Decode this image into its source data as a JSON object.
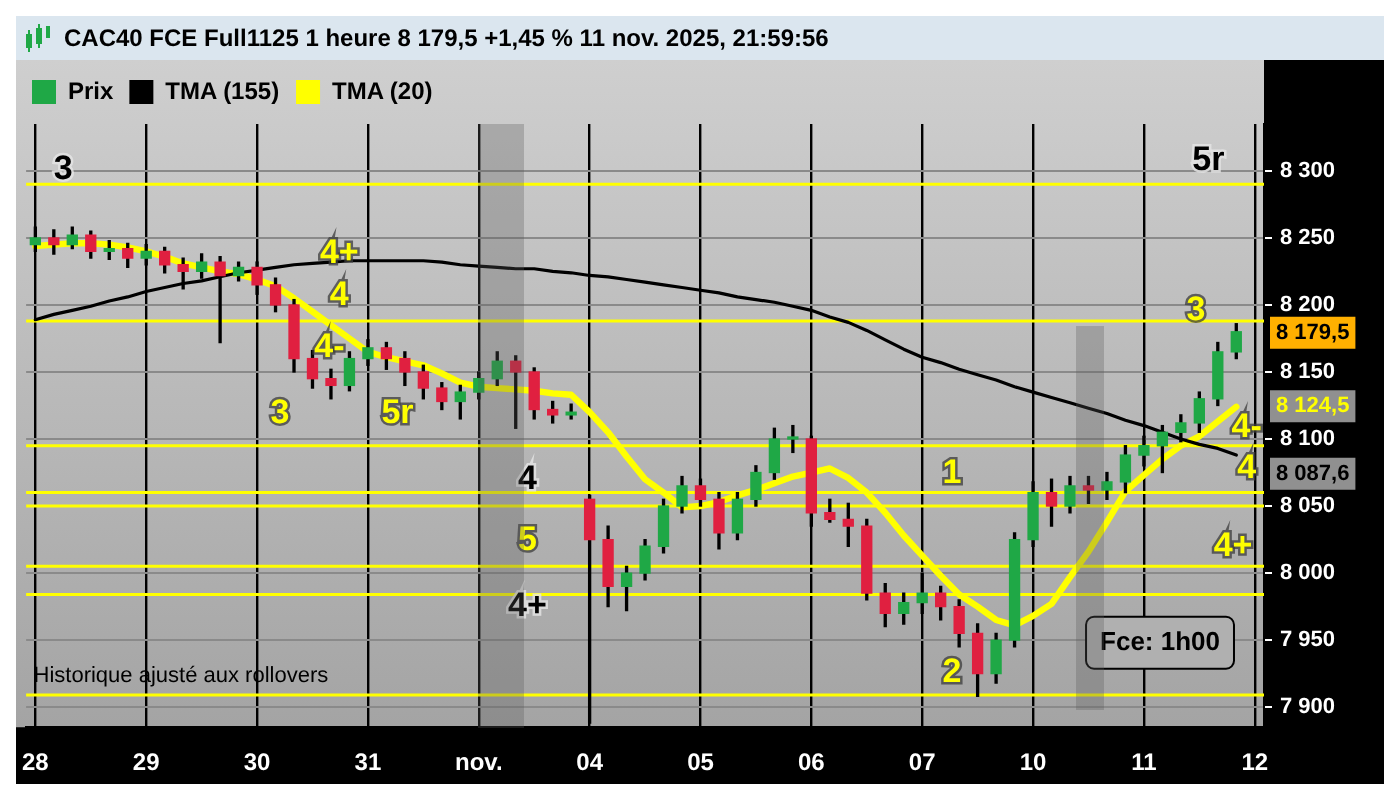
{
  "chart_data": {
    "type": "candlestick",
    "title": "CAC40 FCE Full1125 1 heure 8 179,5 +1,45 % 11 nov. 2025, 21:59:56",
    "categories": [
      "28",
      null,
      null,
      null,
      null,
      null,
      "29",
      null,
      null,
      null,
      null,
      null,
      "30",
      null,
      null,
      null,
      null,
      null,
      "31",
      null,
      null,
      null,
      null,
      null,
      "nov.",
      null,
      null,
      null,
      null,
      null,
      "04",
      null,
      null,
      null,
      null,
      null,
      "05",
      null,
      null,
      null,
      null,
      null,
      "06",
      null,
      null,
      null,
      null,
      null,
      "07",
      null,
      null,
      null,
      null,
      null,
      "10",
      null,
      null,
      null,
      null,
      null,
      "11",
      null,
      null,
      null,
      null,
      null,
      "12"
    ],
    "series": [
      {
        "name": "Prix",
        "color": "#000000",
        "ohlc": [
          [
            8245,
            8258,
            8240,
            8250
          ],
          [
            8250,
            8256,
            8238,
            8245
          ],
          [
            8245,
            8258,
            8242,
            8252
          ],
          [
            8252,
            8255,
            8235,
            8240
          ],
          [
            8240,
            8248,
            8234,
            8242
          ],
          [
            8242,
            8246,
            8228,
            8235
          ],
          [
            8235,
            8245,
            8230,
            8240
          ],
          [
            8240,
            8243,
            8224,
            8230
          ],
          [
            8230,
            8235,
            8212,
            8225
          ],
          [
            8225,
            8238,
            8220,
            8232
          ],
          [
            8232,
            8236,
            8172,
            8222
          ],
          [
            8222,
            8232,
            8218,
            8228
          ],
          [
            8228,
            8232,
            8208,
            8215
          ],
          [
            8215,
            8220,
            8195,
            8200
          ],
          [
            8200,
            8204,
            8150,
            8160
          ],
          [
            8160,
            8166,
            8138,
            8145
          ],
          [
            8145,
            8152,
            8130,
            8140
          ],
          [
            8140,
            8165,
            8136,
            8160
          ],
          [
            8160,
            8174,
            8155,
            8168
          ],
          [
            8168,
            8172,
            8152,
            8160
          ],
          [
            8160,
            8165,
            8140,
            8150
          ],
          [
            8150,
            8155,
            8130,
            8138
          ],
          [
            8138,
            8142,
            8122,
            8128
          ],
          [
            8128,
            8140,
            8115,
            8135
          ],
          [
            8135,
            8150,
            8130,
            8145
          ],
          [
            8145,
            8165,
            8140,
            8158
          ],
          [
            8158,
            8162,
            8108,
            8150
          ],
          [
            8150,
            8153,
            8115,
            8122
          ],
          [
            8122,
            8128,
            8112,
            8118
          ],
          [
            8118,
            8126,
            8115,
            8120
          ],
          [
            8055,
            8058,
            7888,
            8025
          ],
          [
            8025,
            8035,
            7975,
            7990
          ],
          [
            7990,
            8005,
            7972,
            8000
          ],
          [
            8000,
            8025,
            7995,
            8020
          ],
          [
            8020,
            8055,
            8015,
            8050
          ],
          [
            8050,
            8072,
            8045,
            8065
          ],
          [
            8065,
            8070,
            8050,
            8055
          ],
          [
            8055,
            8060,
            8018,
            8030
          ],
          [
            8030,
            8060,
            8025,
            8055
          ],
          [
            8055,
            8080,
            8050,
            8075
          ],
          [
            8075,
            8108,
            8070,
            8100
          ],
          [
            8100,
            8110,
            8090,
            8100
          ],
          [
            8100,
            8102,
            8035,
            8045
          ],
          [
            8045,
            8055,
            8038,
            8040
          ],
          [
            8040,
            8052,
            8020,
            8035
          ],
          [
            8035,
            8040,
            7980,
            7985
          ],
          [
            7985,
            7992,
            7960,
            7970
          ],
          [
            7970,
            7985,
            7962,
            7978
          ],
          [
            7978,
            8000,
            7970,
            7985
          ],
          [
            7985,
            7990,
            7965,
            7975
          ],
          [
            7975,
            7980,
            7945,
            7955
          ],
          [
            7955,
            7962,
            7908,
            7925
          ],
          [
            7925,
            7955,
            7918,
            7950
          ],
          [
            7950,
            8030,
            7945,
            8025
          ],
          [
            8025,
            8068,
            8020,
            8060
          ],
          [
            8060,
            8070,
            8035,
            8050
          ],
          [
            8050,
            8072,
            8045,
            8065
          ],
          [
            8065,
            8072,
            8052,
            8062
          ],
          [
            8062,
            8075,
            8055,
            8068
          ],
          [
            8068,
            8095,
            8060,
            8088
          ],
          [
            8088,
            8102,
            8080,
            8095
          ],
          [
            8095,
            8110,
            8075,
            8105
          ],
          [
            8105,
            8118,
            8098,
            8112
          ],
          [
            8112,
            8135,
            8105,
            8130
          ],
          [
            8130,
            8172,
            8125,
            8165
          ],
          [
            8165,
            8186,
            8160,
            8180
          ],
          null
        ],
        "colors": [
          "#1fa846",
          "#e02040",
          "#1fa846",
          "#e02040",
          "#1fa846",
          "#e02040",
          "#1fa846",
          "#e02040",
          "#e02040",
          "#1fa846",
          "#e02040",
          "#1fa846",
          "#e02040",
          "#e02040",
          "#e02040",
          "#e02040",
          "#e02040",
          "#1fa846",
          "#1fa846",
          "#e02040",
          "#e02040",
          "#e02040",
          "#e02040",
          "#1fa846",
          "#1fa846",
          "#1fa846",
          "#e02040",
          "#e02040",
          "#e02040",
          "#1fa846",
          "#e02040",
          "#e02040",
          "#1fa846",
          "#1fa846",
          "#1fa846",
          "#1fa846",
          "#e02040",
          "#e02040",
          "#1fa846",
          "#1fa846",
          "#1fa846",
          "#1fa846",
          "#e02040",
          "#e02040",
          "#e02040",
          "#e02040",
          "#e02040",
          "#1fa846",
          "#1fa846",
          "#e02040",
          "#e02040",
          "#e02040",
          "#1fa846",
          "#1fa846",
          "#1fa846",
          "#e02040",
          "#1fa846",
          "#e02040",
          "#1fa846",
          "#1fa846",
          "#1fa846",
          "#1fa846",
          "#1fa846",
          "#1fa846",
          "#1fa846",
          "#1fa846",
          null
        ]
      },
      {
        "name": "TMA (155)",
        "type": "line",
        "color": "#000000",
        "values": [
          8189,
          8193,
          8196,
          8199,
          8203,
          8206,
          8210,
          8213,
          8216,
          8218,
          8221,
          8224,
          8226,
          8228,
          8230,
          8231,
          8232,
          8233,
          8233,
          8233,
          8233,
          8233,
          8232,
          8230,
          8229,
          8228,
          8227,
          8227,
          8225,
          8224,
          8222,
          8221,
          8219,
          8217,
          8215,
          8213,
          8211,
          8209,
          8206,
          8204,
          8202,
          8199,
          8196,
          8191,
          8187,
          8181,
          8174,
          8167,
          8161,
          8157,
          8152,
          8148,
          8144,
          8139,
          8135,
          8131,
          8127,
          8123,
          8119,
          8114,
          8110,
          8105,
          8100,
          8096,
          8093,
          8088,
          null
        ]
      },
      {
        "name": "TMA (20)",
        "type": "line",
        "color": "#ffff00",
        "values": [
          8244,
          8245,
          8246,
          8246,
          8245,
          8243,
          8240,
          8236,
          8231,
          8228,
          8225,
          8223,
          8219,
          8214,
          8205,
          8195,
          8185,
          8175,
          8165,
          8161,
          8158,
          8155,
          8149,
          8142,
          8139,
          8138,
          8137,
          8136,
          8134,
          8133,
          8120,
          8105,
          8087,
          8070,
          8060,
          8049,
          8050,
          8053,
          8058,
          8062,
          8067,
          8072,
          8075,
          8078,
          8071,
          8060,
          8045,
          8028,
          8013,
          7998,
          7984,
          7975,
          7965,
          7961,
          7968,
          7977,
          7997,
          8016,
          8038,
          8061,
          8073,
          8085,
          8095,
          8102,
          8113,
          8124,
          null
        ]
      }
    ],
    "ylim": [
      7885,
      8335
    ],
    "yticks": [
      {
        "value": 7900,
        "label": "7 900"
      },
      {
        "value": 7950,
        "label": "7 950"
      },
      {
        "value": 8000,
        "label": "8 000"
      },
      {
        "value": 8050,
        "label": "8 050"
      },
      {
        "value": 8100,
        "label": "8 100"
      },
      {
        "value": 8150,
        "label": "8 150"
      },
      {
        "value": 8200,
        "label": "8 200"
      },
      {
        "value": 8250,
        "label": "8 250"
      },
      {
        "value": 8300,
        "label": "8 300"
      }
    ],
    "grid": true,
    "legend": "top left",
    "ref_lines": [
      {
        "axis": "y",
        "value": 8290,
        "color": "#ffff00"
      },
      {
        "axis": "y",
        "value": 8188,
        "color": "#ffff00"
      },
      {
        "axis": "y",
        "value": 8095,
        "color": "#ffff00"
      },
      {
        "axis": "y",
        "value": 8060,
        "color": "#ffff00"
      },
      {
        "axis": "y",
        "value": 8050,
        "color": "#ffff00"
      },
      {
        "axis": "y",
        "value": 8005,
        "color": "#ffff00"
      },
      {
        "axis": "y",
        "value": 7984,
        "color": "#ffff00"
      },
      {
        "axis": "y",
        "value": 7909,
        "color": "#ffff00"
      }
    ],
    "annotations": [
      "3",
      "5r",
      "4+",
      "4",
      "4-",
      "3",
      "5r",
      "4",
      "5",
      "4+",
      "1",
      "2",
      "3",
      "4-",
      "4",
      "4+",
      "8 179,5",
      "8 124,5",
      "8 087,6",
      "Fce: 1h00",
      "Historique ajusté aux rollovers"
    ]
  }
}
